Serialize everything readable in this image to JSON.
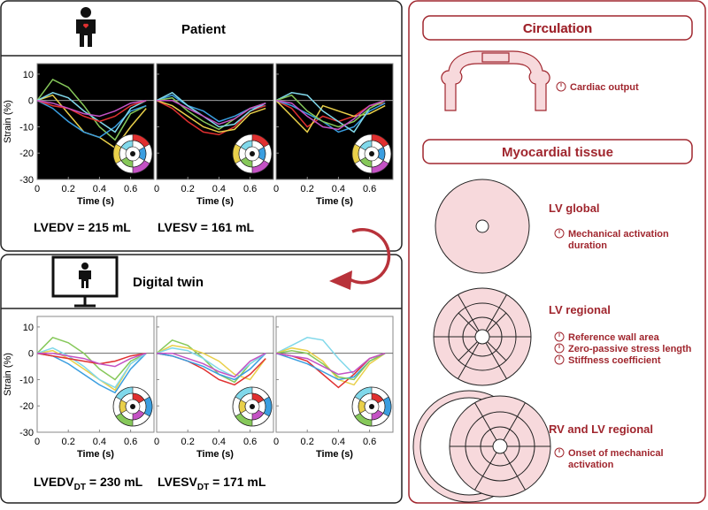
{
  "axes": {
    "ylabel": "Strain (%)",
    "xlabel": "Time (s)",
    "ylim": [
      -30,
      14
    ],
    "xlim": [
      0,
      0.75
    ],
    "yticks": [
      10,
      0,
      -10,
      -20,
      -30
    ],
    "xticks": [
      0,
      0.2,
      0.4,
      0.6
    ],
    "x": [
      0,
      0.1,
      0.2,
      0.3,
      0.4,
      0.5,
      0.6,
      0.7
    ]
  },
  "patient": {
    "title": "Patient",
    "lvedv": "LVEDV = 215 mL",
    "lvesv": "LVESV = 161 mL",
    "panels": [
      {
        "series": [
          {
            "color": "#86c85a",
            "values": [
              0,
              8,
              5,
              -2,
              -10,
              -15,
              -5,
              -2
            ]
          },
          {
            "color": "#e9d04a",
            "values": [
              0,
              2,
              -5,
              -12,
              -14,
              -18,
              -10,
              -3
            ]
          },
          {
            "color": "#3a9ee0",
            "values": [
              0,
              -3,
              -8,
              -12,
              -14,
              -10,
              -4,
              -2
            ]
          },
          {
            "color": "#80d8ea",
            "values": [
              0,
              3,
              1,
              -4,
              -8,
              -12,
              -3,
              0
            ]
          },
          {
            "color": "#e03030",
            "values": [
              0,
              -2,
              -3,
              -6,
              -8,
              -6,
              -2,
              0
            ]
          },
          {
            "color": "#c452c4",
            "values": [
              0,
              -1,
              -3,
              -5,
              -6,
              -4,
              -1,
              0
            ]
          }
        ]
      },
      {
        "series": [
          {
            "color": "#3a9ee0",
            "values": [
              0,
              2,
              -2,
              -4,
              -8,
              -6,
              -3,
              -2
            ]
          },
          {
            "color": "#e03030",
            "values": [
              0,
              -3,
              -8,
              -12,
              -13,
              -10,
              -4,
              -2
            ]
          },
          {
            "color": "#e9d04a",
            "values": [
              0,
              -2,
              -6,
              -10,
              -12,
              -11,
              -5,
              -3
            ]
          },
          {
            "color": "#86c85a",
            "values": [
              0,
              1,
              -4,
              -8,
              -11,
              -7,
              -3,
              -1
            ]
          },
          {
            "color": "#80d8ea",
            "values": [
              0,
              3,
              -2,
              -6,
              -10,
              -9,
              -4,
              -1
            ]
          },
          {
            "color": "#c452c4",
            "values": [
              0,
              0,
              -3,
              -6,
              -9,
              -7,
              -3,
              -1
            ]
          }
        ]
      },
      {
        "series": [
          {
            "color": "#e03030",
            "values": [
              0,
              -3,
              -10,
              -6,
              -8,
              -6,
              -2,
              -1
            ]
          },
          {
            "color": "#e9d04a",
            "values": [
              0,
              -6,
              -12,
              -2,
              -4,
              -6,
              -5,
              -2
            ]
          },
          {
            "color": "#3a9ee0",
            "values": [
              0,
              -2,
              -5,
              -8,
              -12,
              -10,
              -4,
              -1
            ]
          },
          {
            "color": "#80d8ea",
            "values": [
              0,
              3,
              2,
              -4,
              -8,
              -12,
              -3,
              0
            ]
          },
          {
            "color": "#86c85a",
            "values": [
              0,
              2,
              -4,
              -8,
              -10,
              -8,
              -3,
              0
            ]
          },
          {
            "color": "#c452c4",
            "values": [
              0,
              -1,
              -6,
              -10,
              -11,
              -7,
              -2,
              0
            ]
          }
        ]
      }
    ]
  },
  "twin": {
    "title": "Digital twin",
    "lvedv": {
      "name": "LVEDV",
      "sub": "DT",
      "rest": " = 230 mL"
    },
    "lvesv": {
      "name": "LVESV",
      "sub": "DT",
      "rest": " = 171 mL"
    },
    "panels": [
      {
        "series": [
          {
            "color": "#86c85a",
            "values": [
              0,
              6,
              4,
              0,
              -6,
              -10,
              -3,
              0
            ]
          },
          {
            "color": "#e9d04a",
            "values": [
              0,
              1,
              -2,
              -6,
              -10,
              -14,
              -4,
              0
            ]
          },
          {
            "color": "#3a9ee0",
            "values": [
              0,
              -1,
              -4,
              -8,
              -12,
              -15,
              -6,
              0
            ]
          },
          {
            "color": "#80d8ea",
            "values": [
              0,
              2,
              -1,
              -5,
              -10,
              -13,
              -4,
              0
            ]
          },
          {
            "color": "#e03030",
            "values": [
              0,
              -1,
              -2,
              -3,
              -4,
              -3,
              -1,
              0
            ]
          },
          {
            "color": "#c452c4",
            "values": [
              0,
              0,
              -1,
              -2,
              -4,
              -5,
              -2,
              0
            ]
          }
        ]
      },
      {
        "series": [
          {
            "color": "#86c85a",
            "values": [
              0,
              5,
              3,
              -2,
              -8,
              -11,
              -4,
              0
            ]
          },
          {
            "color": "#e9d04a",
            "values": [
              0,
              3,
              2,
              0,
              -3,
              -8,
              -10,
              -2
            ]
          },
          {
            "color": "#e03030",
            "values": [
              0,
              -1,
              -3,
              -6,
              -10,
              -12,
              -8,
              -2
            ]
          },
          {
            "color": "#3a9ee0",
            "values": [
              0,
              -1,
              -3,
              -5,
              -8,
              -10,
              -6,
              0
            ]
          },
          {
            "color": "#80d8ea",
            "values": [
              0,
              2,
              1,
              -2,
              -6,
              -9,
              -4,
              0
            ]
          },
          {
            "color": "#c452c4",
            "values": [
              0,
              0,
              -2,
              -4,
              -7,
              -9,
              -3,
              0
            ]
          }
        ]
      },
      {
        "series": [
          {
            "color": "#80d8ea",
            "values": [
              0,
              3,
              6,
              5,
              -2,
              -8,
              -2,
              0
            ]
          },
          {
            "color": "#e9d04a",
            "values": [
              0,
              2,
              1,
              -3,
              -10,
              -12,
              -4,
              0
            ]
          },
          {
            "color": "#e03030",
            "values": [
              0,
              -1,
              -3,
              -8,
              -13,
              -8,
              -2,
              0
            ]
          },
          {
            "color": "#3a9ee0",
            "values": [
              0,
              -2,
              -4,
              -7,
              -10,
              -9,
              -3,
              0
            ]
          },
          {
            "color": "#86c85a",
            "values": [
              0,
              1,
              0,
              -4,
              -9,
              -10,
              -3,
              0
            ]
          },
          {
            "color": "#c452c4",
            "values": [
              0,
              -1,
              -2,
              -5,
              -8,
              -7,
              -2,
              0
            ]
          }
        ]
      }
    ]
  },
  "circulation": {
    "title": "Circulation",
    "params": [
      [
        "Cardiac output"
      ]
    ]
  },
  "tissue": {
    "title": "Myocardial tissue",
    "sections": [
      {
        "title": "LV global",
        "params": [
          [
            "Mechanical activation",
            "duration"
          ]
        ]
      },
      {
        "title": "LV regional",
        "params": [
          [
            "Reference wall area"
          ],
          [
            "Zero-passive stress length"
          ],
          [
            "Stiffness coefficient"
          ]
        ]
      },
      {
        "title": "RV and LV regional",
        "params": [
          [
            "Onset of mechanical",
            "activation"
          ]
        ]
      }
    ]
  }
}
